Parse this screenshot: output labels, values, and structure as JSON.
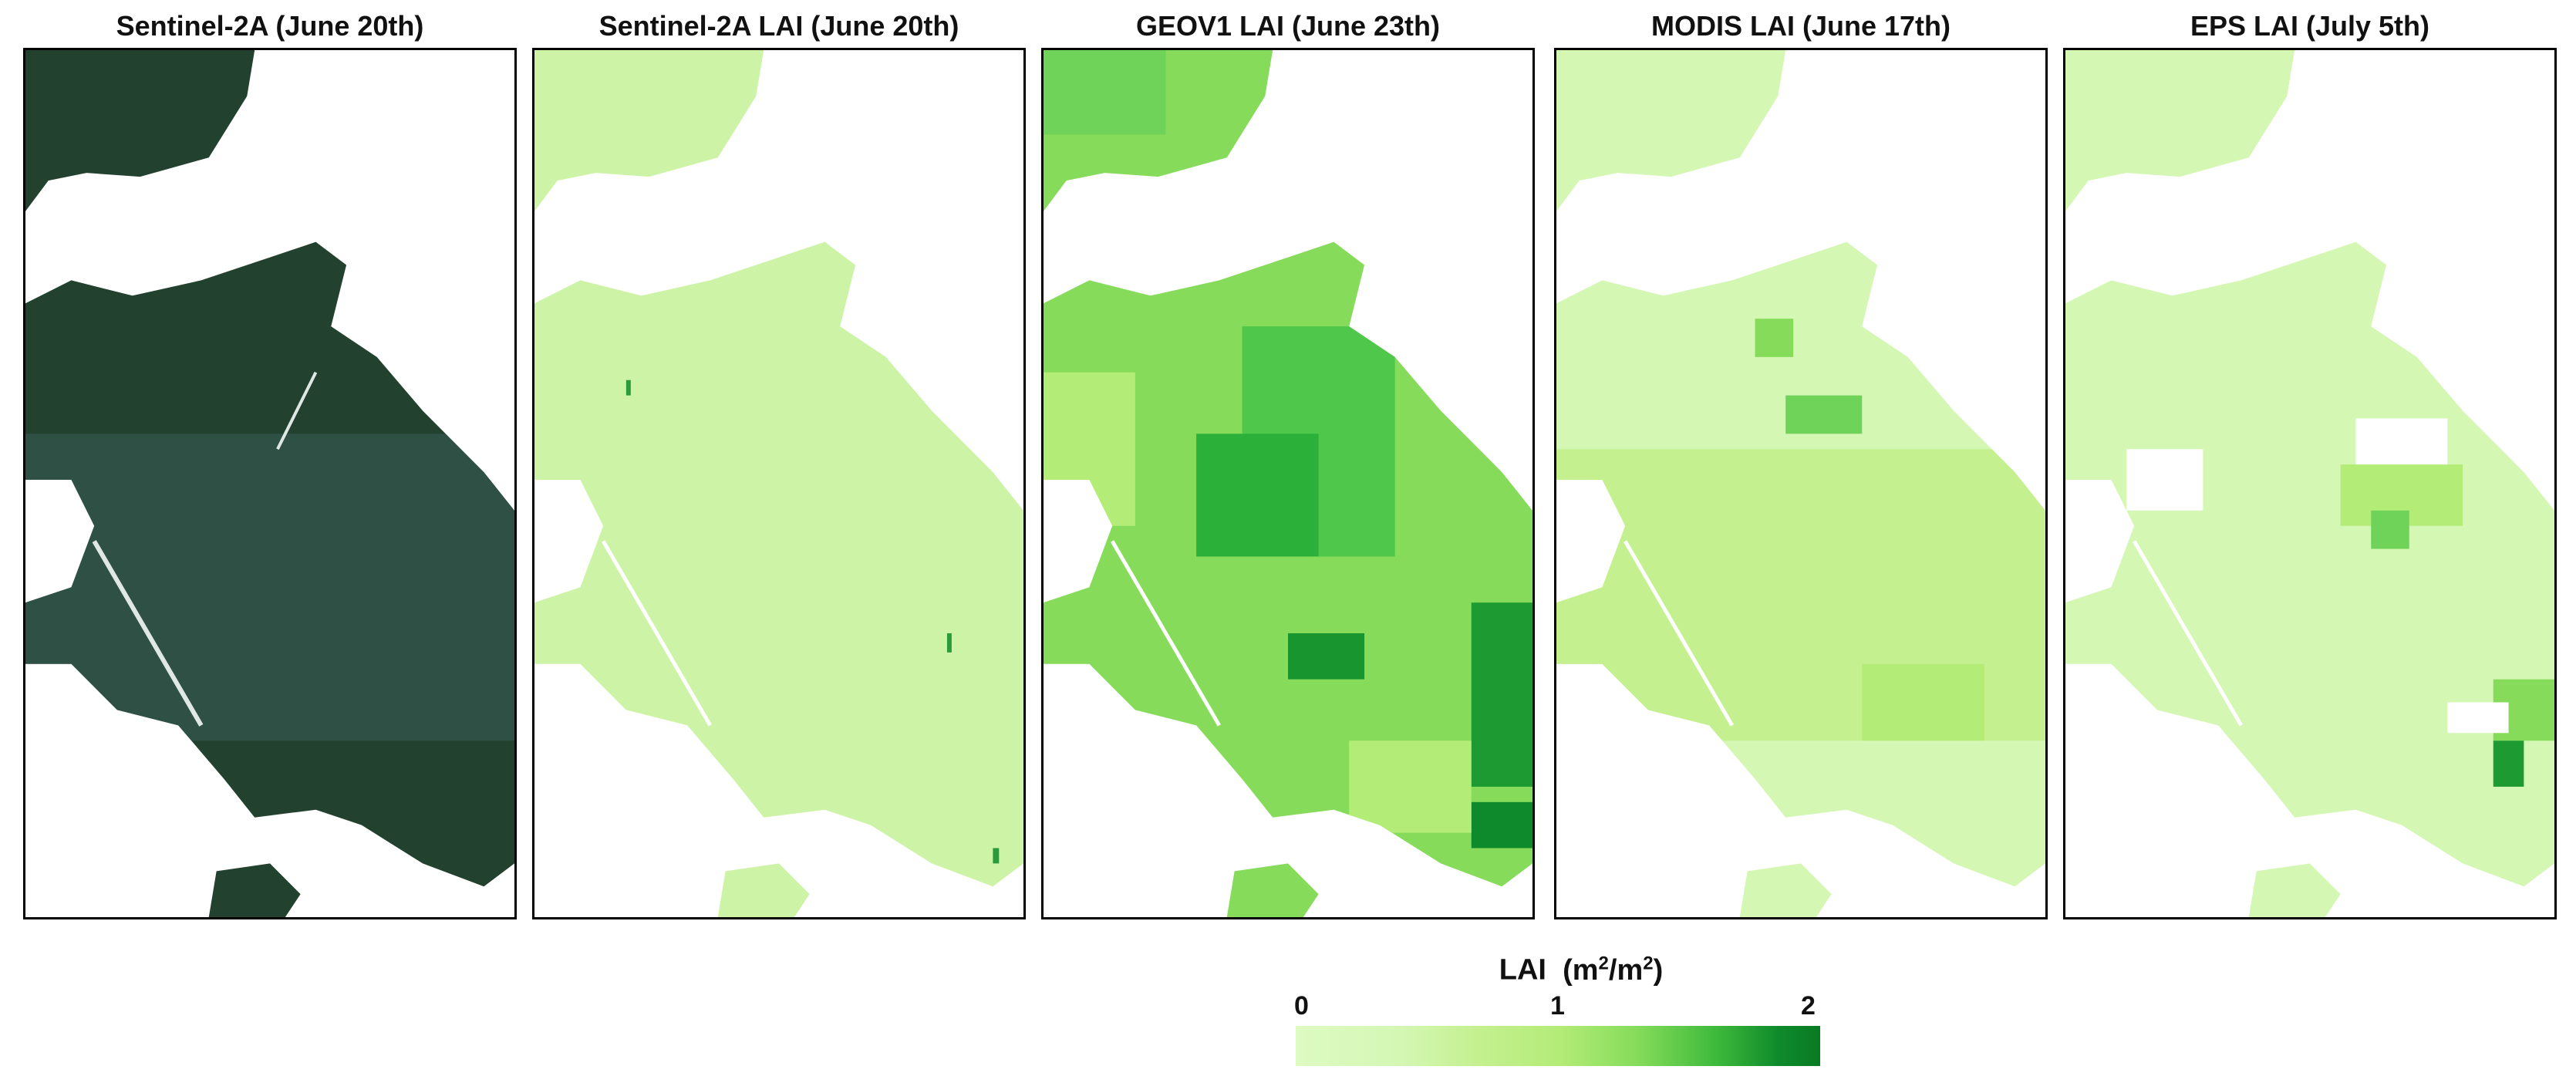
{
  "panels": [
    {
      "title": "Sentinel-2A (June 20th)",
      "kind": "rgb"
    },
    {
      "title": "Sentinel-2A LAI (June 20th)",
      "kind": "s2lai"
    },
    {
      "title": "GEOV1 LAI (June 23th)",
      "kind": "geov1"
    },
    {
      "title": "MODIS LAI (June 17th)",
      "kind": "modis"
    },
    {
      "title": "EPS LAI (July 5th)",
      "kind": "eps"
    }
  ],
  "legend": {
    "title": "LAI",
    "unit_prefix": "(m",
    "unit_exp1": "2",
    "unit_mid": "/m",
    "unit_exp2": "2",
    "unit_suffix": ")",
    "ticks": [
      "0",
      "1",
      "2"
    ],
    "range": [
      0,
      2
    ]
  },
  "colors": {
    "rgb_forest": "#1f3b2c",
    "lai_low": "#ddfbc2",
    "lai_high": "#0a7a22"
  }
}
